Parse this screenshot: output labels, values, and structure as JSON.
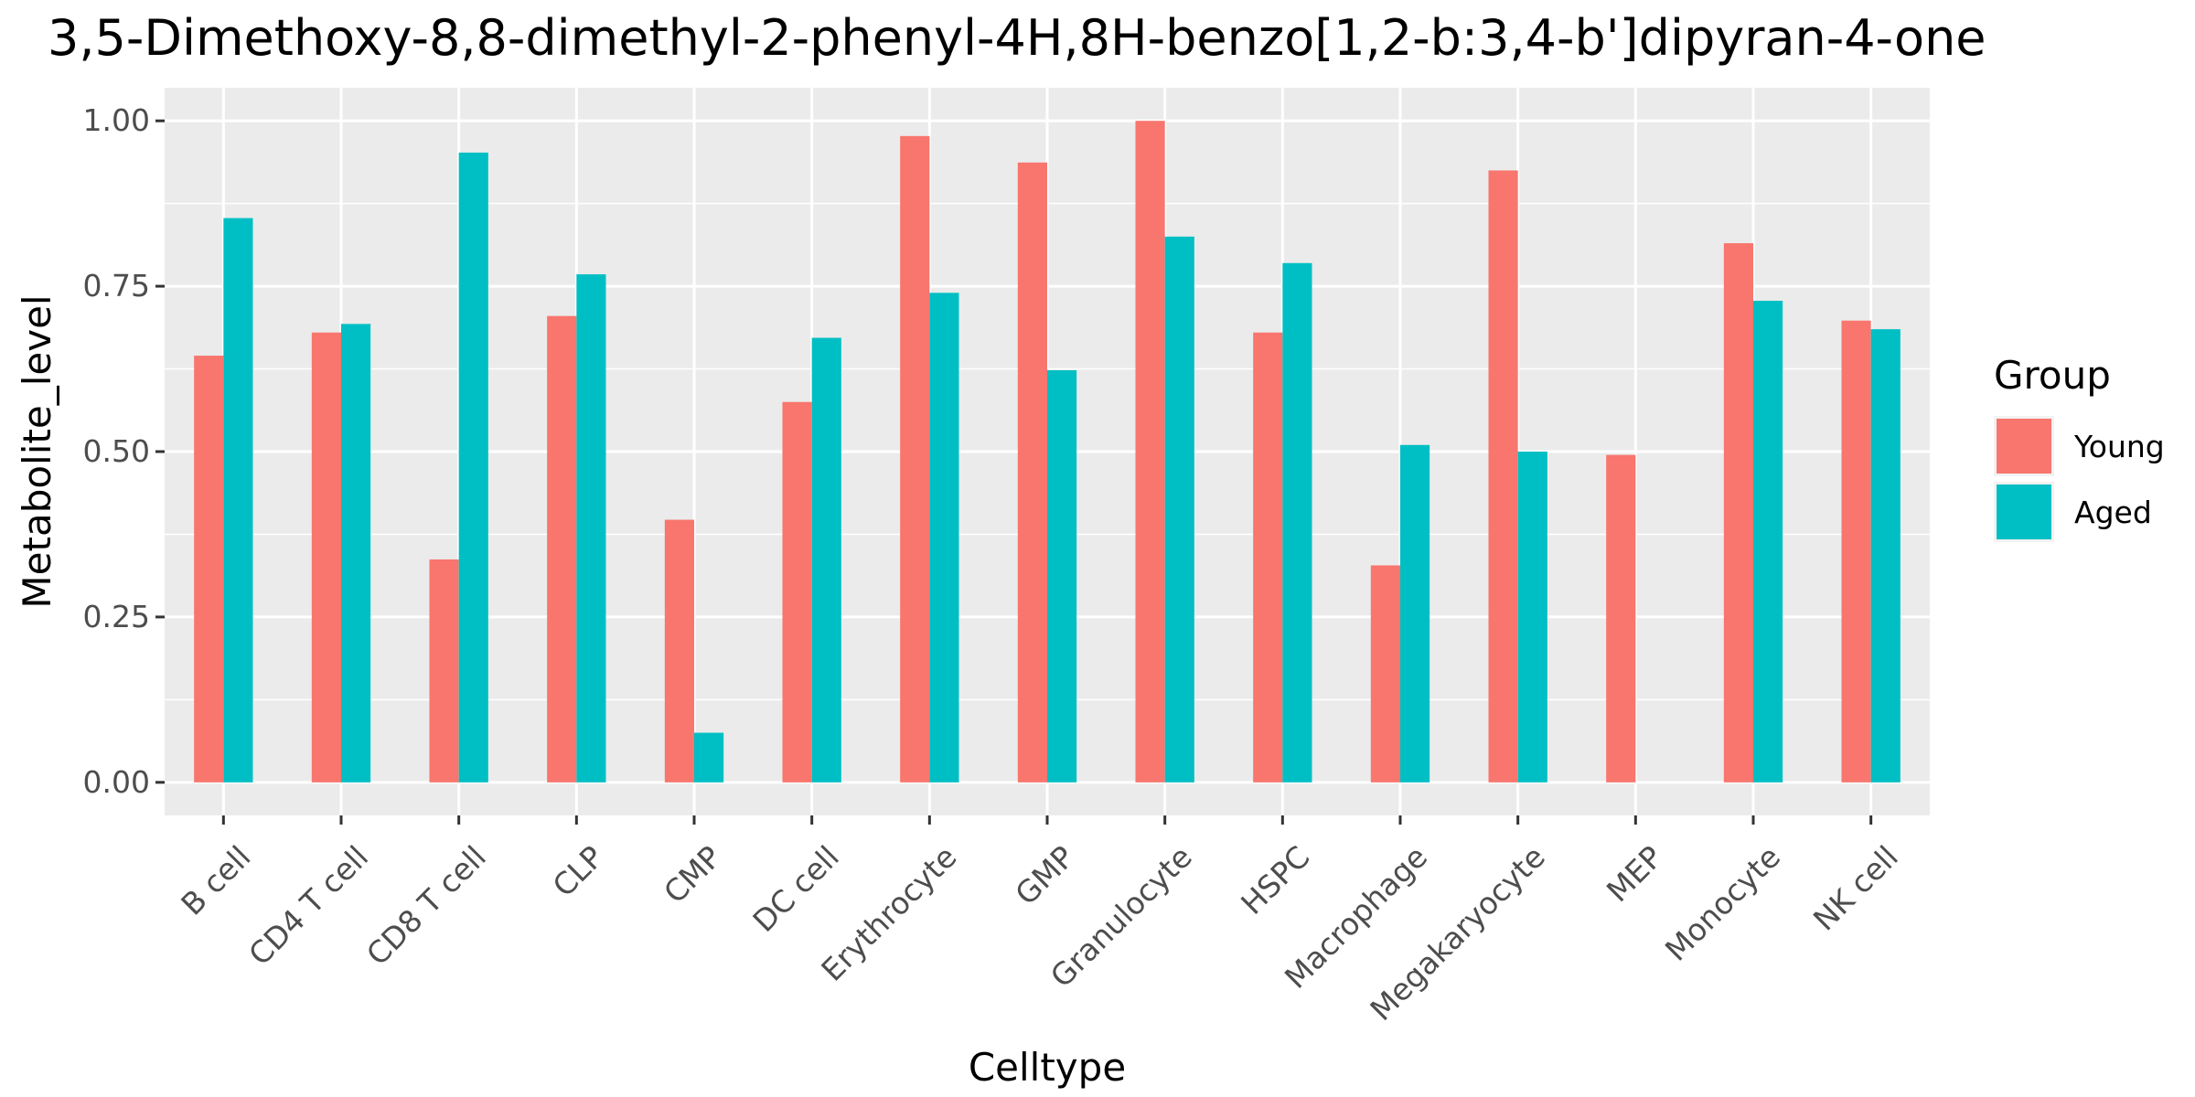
{
  "chart_data": {
    "type": "bar",
    "title": "3,5-Dimethoxy-8,8-dimethyl-2-phenyl-4H,8H-benzo[1,2-b:3,4-b']dipyran-4-one",
    "xlabel": "Celltype",
    "ylabel": "Metabolite_level",
    "ylim": [
      -0.05,
      1.05
    ],
    "yticks": [
      0.0,
      0.25,
      0.5,
      0.75,
      1.0
    ],
    "ytick_labels": [
      "0.00",
      "0.25",
      "0.50",
      "0.75",
      "1.00"
    ],
    "categories": [
      "B cell",
      "CD4 T cell",
      "CD8 T cell",
      "CLP",
      "CMP",
      "DC cell",
      "Erythrocyte",
      "GMP",
      "Granulocyte",
      "HSPC",
      "Macrophage",
      "Megakaryocyte",
      "MEP",
      "Monocyte",
      "NK cell"
    ],
    "series": [
      {
        "name": "Young",
        "color": "#F8766D",
        "values": [
          0.645,
          0.68,
          0.337,
          0.705,
          0.397,
          0.575,
          0.977,
          0.937,
          1.0,
          0.68,
          0.328,
          0.925,
          0.495,
          0.815,
          0.698
        ]
      },
      {
        "name": "Aged",
        "color": "#00BFC4",
        "values": [
          0.853,
          0.693,
          0.952,
          0.768,
          0.075,
          0.672,
          0.74,
          0.623,
          0.825,
          0.785,
          0.51,
          0.5,
          null,
          0.728,
          0.685
        ]
      }
    ],
    "legend": {
      "title": "Group",
      "position": "right"
    },
    "grid": true,
    "panel_background": "#EBEBEB",
    "grid_color": "#FFFFFF"
  }
}
